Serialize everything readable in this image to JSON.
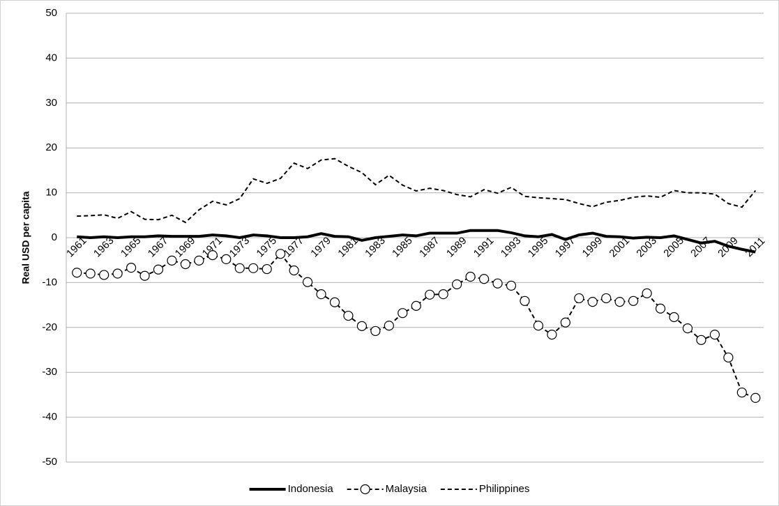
{
  "chart_data": {
    "type": "line",
    "y_label": "Real USD per capita",
    "categories": [
      "1961",
      null,
      "1963",
      null,
      "1965",
      null,
      "1967",
      null,
      "1969",
      null,
      "1971",
      null,
      "1973",
      null,
      "1975",
      null,
      "1977",
      null,
      "1979",
      null,
      "1981",
      null,
      "1983",
      null,
      "1985",
      null,
      "1987",
      null,
      "1989",
      null,
      "1991",
      null,
      "1993",
      null,
      "1995",
      null,
      "1997",
      null,
      "1999",
      null,
      "2001",
      null,
      "2003",
      null,
      "2005",
      null,
      "2007",
      null,
      "2009",
      null,
      "2011"
    ],
    "series": [
      {
        "name": "Indonesia",
        "color": "#000000",
        "style": "solid",
        "marker": "none",
        "values": [
          0.2,
          0,
          0.2,
          0,
          0.2,
          0.2,
          0.4,
          0.3,
          0.3,
          0.3,
          0.6,
          0.4,
          0,
          0.6,
          0.4,
          0,
          0,
          0.2,
          0.9,
          0.3,
          0.2,
          -0.6,
          0,
          0.3,
          0.6,
          0.4,
          1,
          1,
          1,
          1.6,
          1.6,
          1.6,
          1.1,
          0.4,
          0.2,
          0.7,
          -0.4,
          0.6,
          1,
          0.3,
          0.2,
          -0.1,
          0.1,
          0,
          0.4,
          -0.4,
          -1.2,
          -0.8,
          -1.9,
          -2.6,
          -3.2
        ]
      },
      {
        "name": "Malaysia",
        "color": "#000000",
        "style": "dashed",
        "marker": "circle",
        "values": [
          -7.8,
          -8,
          -8.3,
          -8,
          -6.7,
          -8.5,
          -7.1,
          -5.1,
          -5.9,
          -5.1,
          -3.9,
          -4.8,
          -6.8,
          -6.8,
          -7,
          -3.6,
          -7.3,
          -9.9,
          -12.6,
          -14.4,
          -17.4,
          -19.7,
          -20.8,
          -19.6,
          -16.8,
          -15.2,
          -12.7,
          -12.6,
          -10.4,
          -8.7,
          -9.2,
          -10.2,
          -10.7,
          -14.1,
          -19.6,
          -21.6,
          -18.9,
          -13.5,
          -14.3,
          -13.5,
          -14.3,
          -14.1,
          -12.4,
          -15.8,
          -17.7,
          -20.2,
          -22.8,
          -21.6,
          -26.7,
          -34.5,
          -35.7
        ]
      },
      {
        "name": "Philippines",
        "color": "#000000",
        "style": "dashed",
        "marker": "none",
        "values": [
          4.8,
          4.9,
          5.1,
          4.3,
          5.8,
          4.1,
          4,
          5,
          3.4,
          6.2,
          8.1,
          7.3,
          8.7,
          13.1,
          12.1,
          13.2,
          16.6,
          15.4,
          17.3,
          17.6,
          15.9,
          14.5,
          11.8,
          13.9,
          11.7,
          10.4,
          11,
          10.5,
          9.6,
          9.1,
          10.7,
          9.9,
          11.2,
          9.2,
          8.9,
          8.7,
          8.5,
          7.6,
          6.9,
          7.9,
          8.3,
          9,
          9.3,
          9,
          10.5,
          10,
          10,
          9.7,
          7.6,
          6.8,
          10.5
        ]
      }
    ],
    "ylim": [
      -50,
      50
    ],
    "yticks": [
      -50,
      -40,
      -30,
      -20,
      -10,
      0,
      10,
      20,
      30,
      40,
      50
    ],
    "grid": true,
    "legend": "bottom"
  }
}
